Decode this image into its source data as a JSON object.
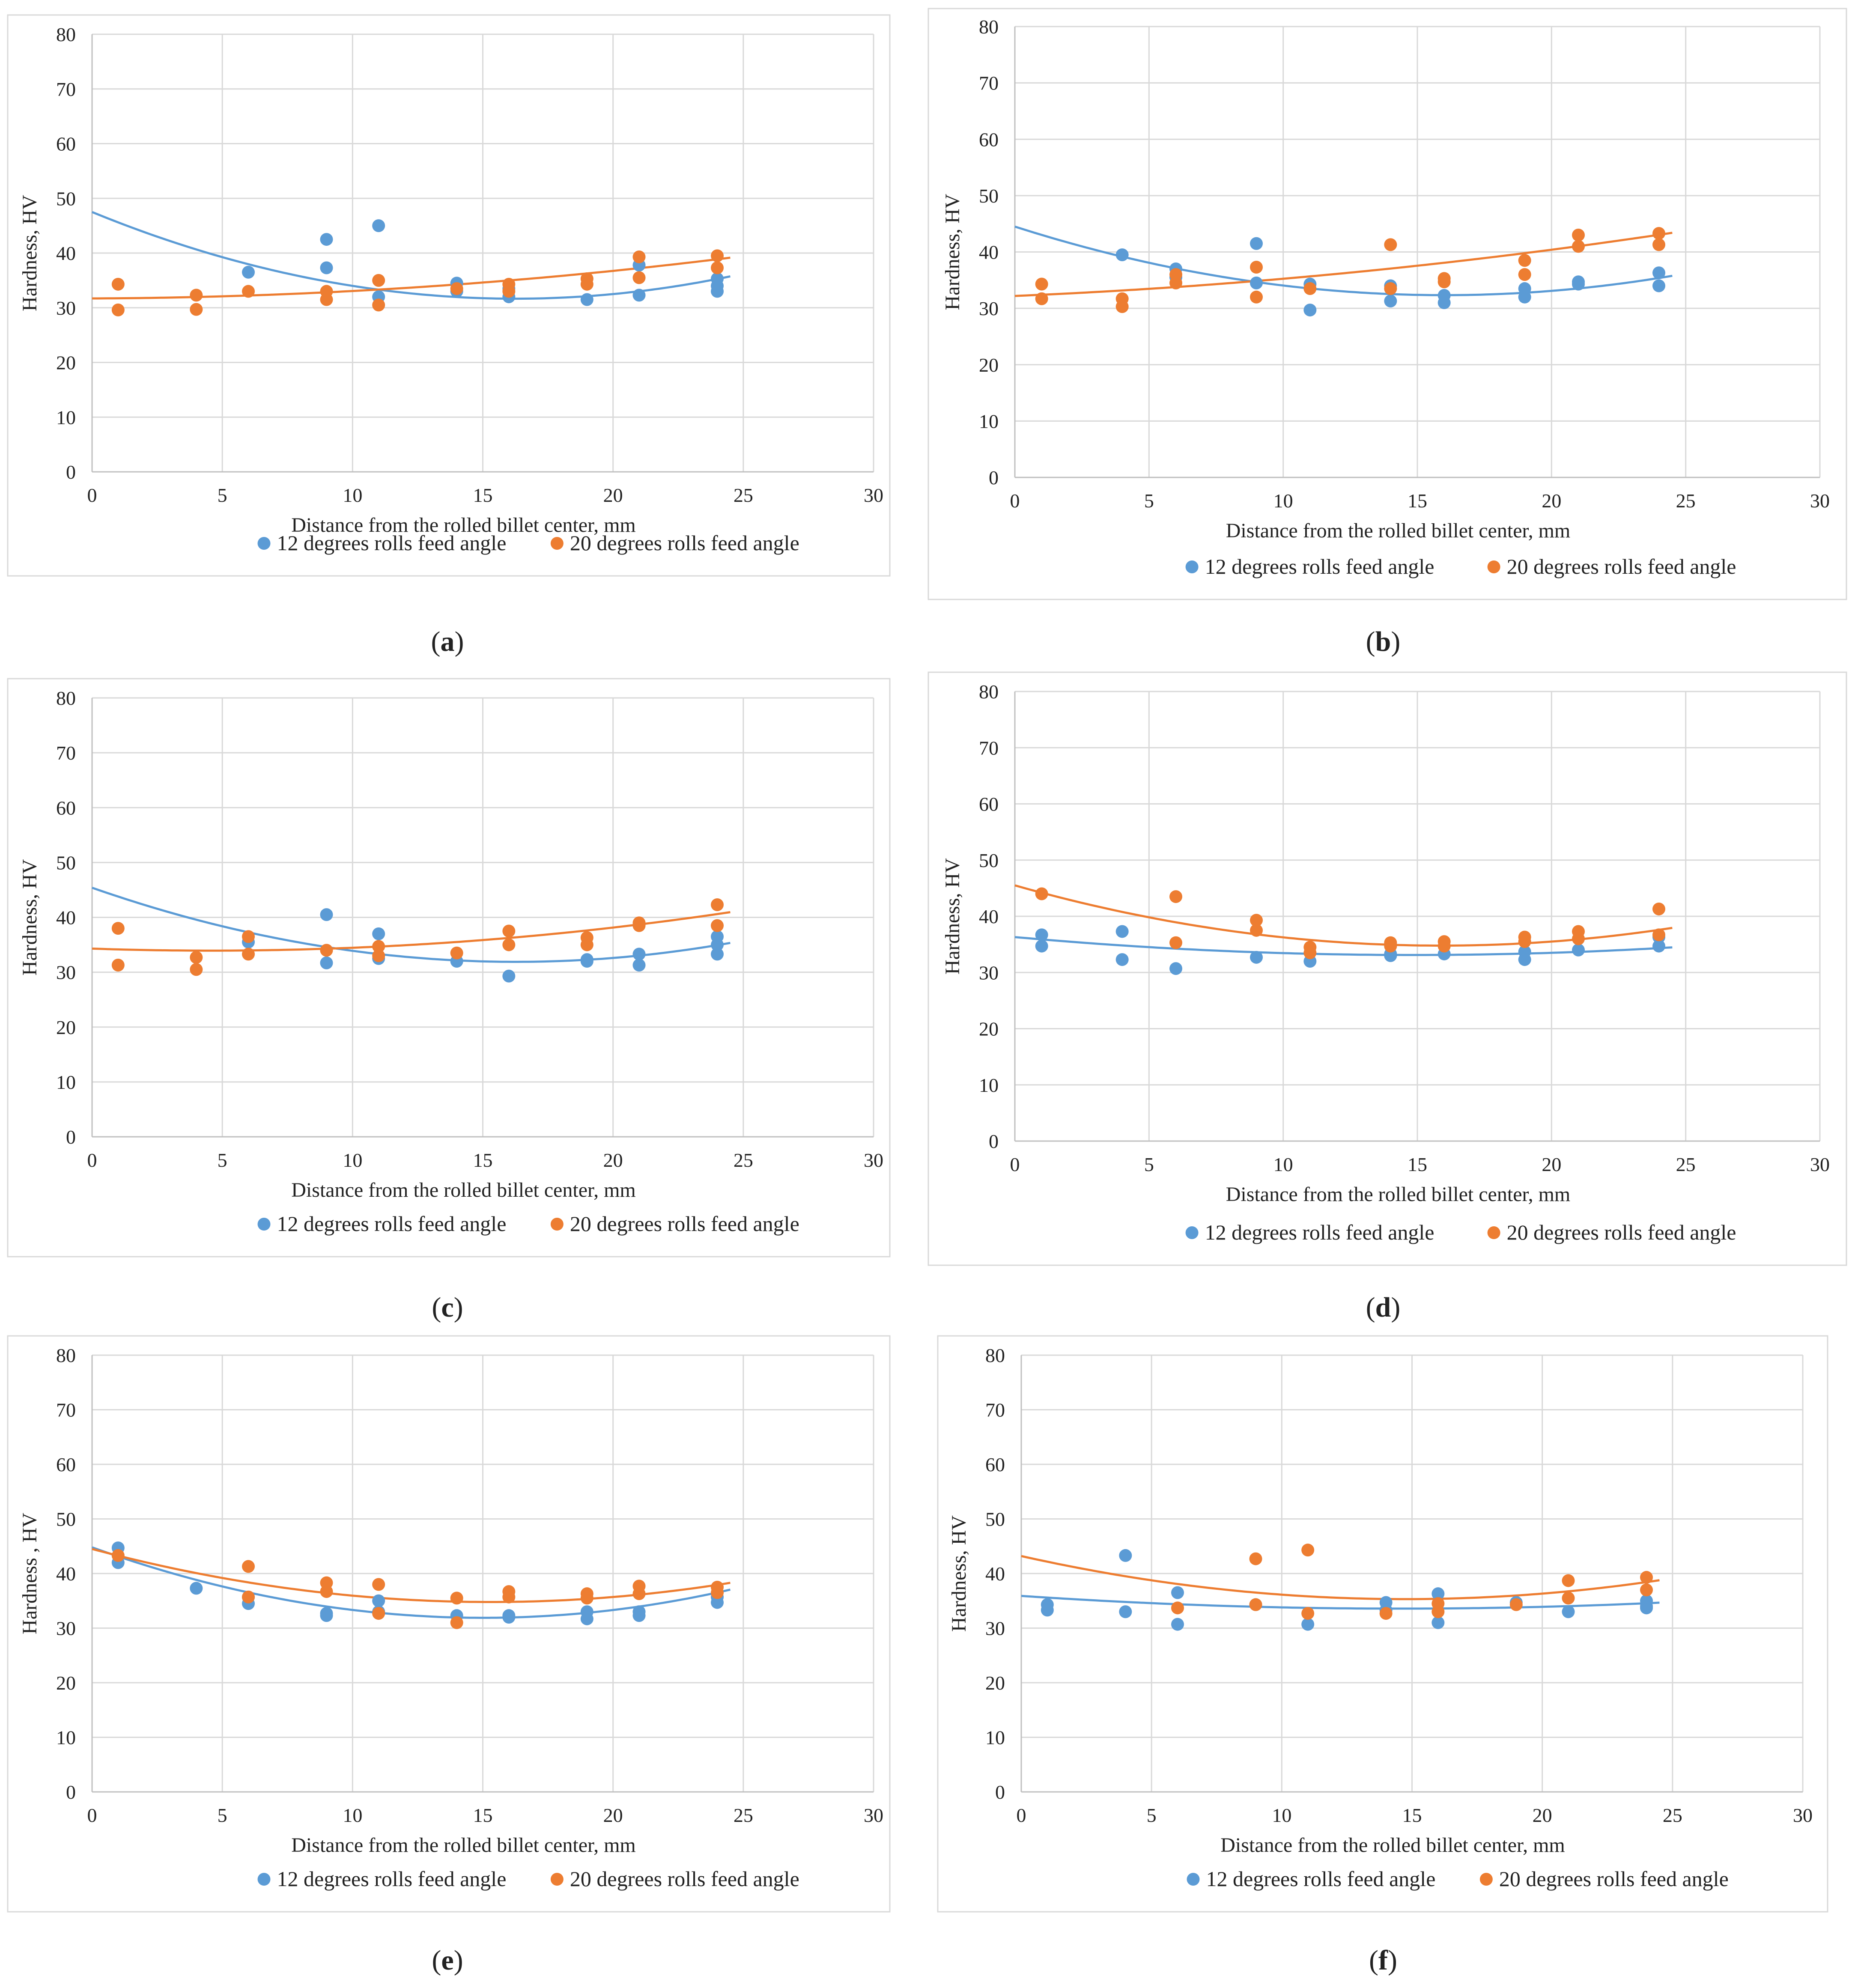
{
  "colors": {
    "series1": "#5b9bd5",
    "series2": "#ed7d31"
  },
  "legend": {
    "series1": "12 degrees rolls feed angle",
    "series2": "20 degrees rolls feed angle"
  },
  "chart_data": [
    {
      "id": "a",
      "caption": "a",
      "type": "scatter",
      "xlabel": "Distance from the rolled billet center, mm",
      "ylabel": "Hardness, HV",
      "xlim": [
        0,
        30
      ],
      "ylim": [
        0,
        80
      ],
      "xticks": [
        0,
        5,
        10,
        15,
        20,
        25,
        30
      ],
      "yticks": [
        0,
        10,
        20,
        30,
        40,
        50,
        60,
        70,
        80
      ],
      "series": [
        {
          "name": "12 degrees rolls feed angle",
          "x": [
            6,
            9,
            9,
            11,
            11,
            14,
            14,
            16,
            16,
            19,
            21,
            21,
            24,
            24,
            24
          ],
          "y": [
            36.5,
            42.5,
            37.3,
            45,
            32,
            34.5,
            33,
            33.5,
            32,
            31.5,
            32.3,
            37.8,
            35.3,
            34,
            33
          ],
          "trend": [
            47.5,
            -1.95,
            0.06
          ]
        },
        {
          "name": "20 degrees rolls feed angle",
          "x": [
            1,
            1,
            4,
            4,
            6,
            9,
            9,
            11,
            11,
            14,
            16,
            16,
            19,
            19,
            21,
            21,
            24,
            24
          ],
          "y": [
            34.3,
            29.6,
            32.3,
            29.7,
            33,
            33,
            31.5,
            35,
            30.5,
            33.5,
            34.3,
            33,
            35.3,
            34.3,
            39.3,
            35.5,
            39.5,
            37.3
          ],
          "trend": [
            31.7,
            0.02,
            0.0116
          ]
        }
      ]
    },
    {
      "id": "b",
      "caption": "b",
      "type": "scatter",
      "xlabel": "Distance from the rolled billet center, mm",
      "ylabel": "Hardness, HV",
      "xlim": [
        0,
        30
      ],
      "ylim": [
        0,
        80
      ],
      "xticks": [
        0,
        5,
        10,
        15,
        20,
        25,
        30
      ],
      "yticks": [
        0,
        10,
        20,
        30,
        40,
        50,
        60,
        70,
        80
      ],
      "series": [
        {
          "name": "12 degrees rolls feed angle",
          "x": [
            4,
            6,
            6,
            9,
            9,
            11,
            11,
            14,
            14,
            16,
            16,
            19,
            19,
            21,
            21,
            24,
            24
          ],
          "y": [
            39.5,
            37,
            35.5,
            41.5,
            34.5,
            34.3,
            29.7,
            34,
            31.3,
            32.3,
            31,
            33.5,
            32,
            34.7,
            34.3,
            36.3,
            34
          ],
          "trend": [
            44.5,
            -1.52,
            0.0475
          ]
        },
        {
          "name": "20 degrees rolls feed angle",
          "x": [
            1,
            1,
            4,
            4,
            6,
            6,
            9,
            9,
            11,
            14,
            14,
            16,
            16,
            19,
            19,
            21,
            21,
            24,
            24
          ],
          "y": [
            34.3,
            31.7,
            31.7,
            30.3,
            36,
            34.5,
            37.3,
            32,
            33.5,
            41.3,
            33.5,
            35.3,
            34.7,
            38.5,
            36,
            43,
            41,
            43.3,
            41.3
          ],
          "trend": [
            32.2,
            0.2,
            0.0105
          ]
        }
      ]
    },
    {
      "id": "c",
      "caption": "c",
      "type": "scatter",
      "xlabel": "Distance from the rolled billet center, mm",
      "ylabel": "Hardness, HV",
      "xlim": [
        0,
        30
      ],
      "ylim": [
        0,
        80
      ],
      "xticks": [
        0,
        5,
        10,
        15,
        20,
        25,
        30
      ],
      "yticks": [
        0,
        10,
        20,
        30,
        40,
        50,
        60,
        70,
        80
      ],
      "series": [
        {
          "name": "12 degrees rolls feed angle",
          "x": [
            6,
            9,
            9,
            11,
            11,
            14,
            16,
            19,
            19,
            21,
            21,
            24,
            24,
            24
          ],
          "y": [
            35.5,
            40.5,
            31.7,
            37,
            32.5,
            32,
            29.3,
            32.3,
            32,
            33.3,
            31.3,
            36.5,
            35,
            33.3
          ],
          "trend": [
            45.4,
            -1.66,
            0.051
          ]
        },
        {
          "name": "20 degrees rolls feed angle",
          "x": [
            1,
            1,
            4,
            4,
            6,
            6,
            9,
            11,
            11,
            14,
            16,
            16,
            19,
            19,
            21,
            21,
            24,
            24
          ],
          "y": [
            38,
            31.3,
            32.7,
            30.5,
            36.5,
            33.3,
            34,
            34.7,
            33,
            33.5,
            37.5,
            35,
            36.3,
            35,
            39,
            38.5,
            42.3,
            38.5
          ],
          "trend": [
            34.3,
            -0.16,
            0.0176
          ]
        }
      ]
    },
    {
      "id": "d",
      "caption": "d",
      "type": "scatter",
      "xlabel": "Distance from the rolled billet center, mm",
      "ylabel": "Hardness, HV",
      "xlim": [
        0,
        30
      ],
      "ylim": [
        0,
        80
      ],
      "xticks": [
        0,
        5,
        10,
        15,
        20,
        25,
        30
      ],
      "yticks": [
        0,
        10,
        20,
        30,
        40,
        50,
        60,
        70,
        80
      ],
      "series": [
        {
          "name": "12 degrees rolls feed angle",
          "x": [
            1,
            1,
            4,
            4,
            6,
            9,
            11,
            14,
            14,
            16,
            19,
            19,
            21,
            24,
            24
          ],
          "y": [
            36.7,
            34.7,
            37.3,
            32.3,
            30.7,
            32.7,
            32,
            33.3,
            33,
            33.3,
            33.7,
            32.3,
            34,
            36.3,
            34.7
          ],
          "trend": [
            36.3,
            -0.43,
            0.0145
          ]
        },
        {
          "name": "20 degrees rolls feed angle",
          "x": [
            1,
            6,
            6,
            9,
            9,
            11,
            11,
            14,
            14,
            16,
            16,
            19,
            19,
            21,
            21,
            24,
            24
          ],
          "y": [
            44,
            43.5,
            35.3,
            39.3,
            37.5,
            34.5,
            33.5,
            35.3,
            34.7,
            35.5,
            34.7,
            36.3,
            35.5,
            37.3,
            36,
            41.3,
            36.7
          ],
          "trend": [
            45.5,
            -1.35,
            0.0425
          ]
        }
      ]
    },
    {
      "id": "e",
      "caption": "e",
      "type": "scatter",
      "xlabel": "Distance from the rolled billet center, mm",
      "ylabel": "Hardness , HV",
      "xlim": [
        0,
        30
      ],
      "ylim": [
        0,
        80
      ],
      "xticks": [
        0,
        5,
        10,
        15,
        20,
        25,
        30
      ],
      "yticks": [
        0,
        10,
        20,
        30,
        40,
        50,
        60,
        70,
        80
      ],
      "series": [
        {
          "name": "12 degrees rolls feed angle",
          "x": [
            1,
            1,
            4,
            6,
            6,
            9,
            9,
            11,
            11,
            14,
            16,
            16,
            19,
            19,
            21,
            21,
            24,
            24
          ],
          "y": [
            44.7,
            42,
            37.3,
            35.7,
            34.5,
            32.7,
            32.3,
            35,
            33,
            32.3,
            32.3,
            32,
            33,
            31.7,
            33,
            32.3,
            35.7,
            34.7
          ],
          "trend": [
            44.8,
            -1.72,
            0.0573
          ]
        },
        {
          "name": "20 degrees rolls feed angle",
          "x": [
            1,
            6,
            6,
            9,
            9,
            11,
            11,
            14,
            14,
            16,
            16,
            19,
            19,
            21,
            21,
            24,
            24
          ],
          "y": [
            43.3,
            41.3,
            35.7,
            38.3,
            36.7,
            38,
            32.7,
            35.5,
            31,
            36.7,
            35.7,
            36.3,
            35.5,
            37.7,
            36.3,
            37.5,
            36.5
          ],
          "trend": [
            44.5,
            -1.27,
            0.0415
          ]
        }
      ]
    },
    {
      "id": "f",
      "caption": "f",
      "type": "scatter",
      "xlabel": "Distance from the rolled billet center, mm",
      "ylabel": "Hardness, HV",
      "xlim": [
        0,
        30
      ],
      "ylim": [
        0,
        80
      ],
      "xticks": [
        0,
        5,
        10,
        15,
        20,
        25,
        30
      ],
      "yticks": [
        0,
        10,
        20,
        30,
        40,
        50,
        60,
        70,
        80
      ],
      "series": [
        {
          "name": "12 degrees rolls feed angle",
          "x": [
            1,
            1,
            4,
            4,
            6,
            6,
            9,
            11,
            14,
            14,
            16,
            16,
            19,
            21,
            24,
            24,
            24
          ],
          "y": [
            34.3,
            33.3,
            43.3,
            33,
            36.5,
            30.7,
            34.3,
            30.7,
            34.7,
            33.3,
            36.3,
            31,
            34.7,
            33,
            35,
            34,
            33.7
          ],
          "trend": [
            35.9,
            -0.32,
            0.011
          ]
        },
        {
          "name": "20 degrees rolls feed angle",
          "x": [
            6,
            9,
            9,
            11,
            11,
            14,
            16,
            16,
            19,
            21,
            21,
            24,
            24
          ],
          "y": [
            33.7,
            42.7,
            34.3,
            44.3,
            32.7,
            32.7,
            34.5,
            33,
            34.3,
            38.7,
            35.5,
            39.3,
            37
          ],
          "trend": [
            43.2,
            -1.07,
            0.0363
          ]
        }
      ]
    }
  ]
}
